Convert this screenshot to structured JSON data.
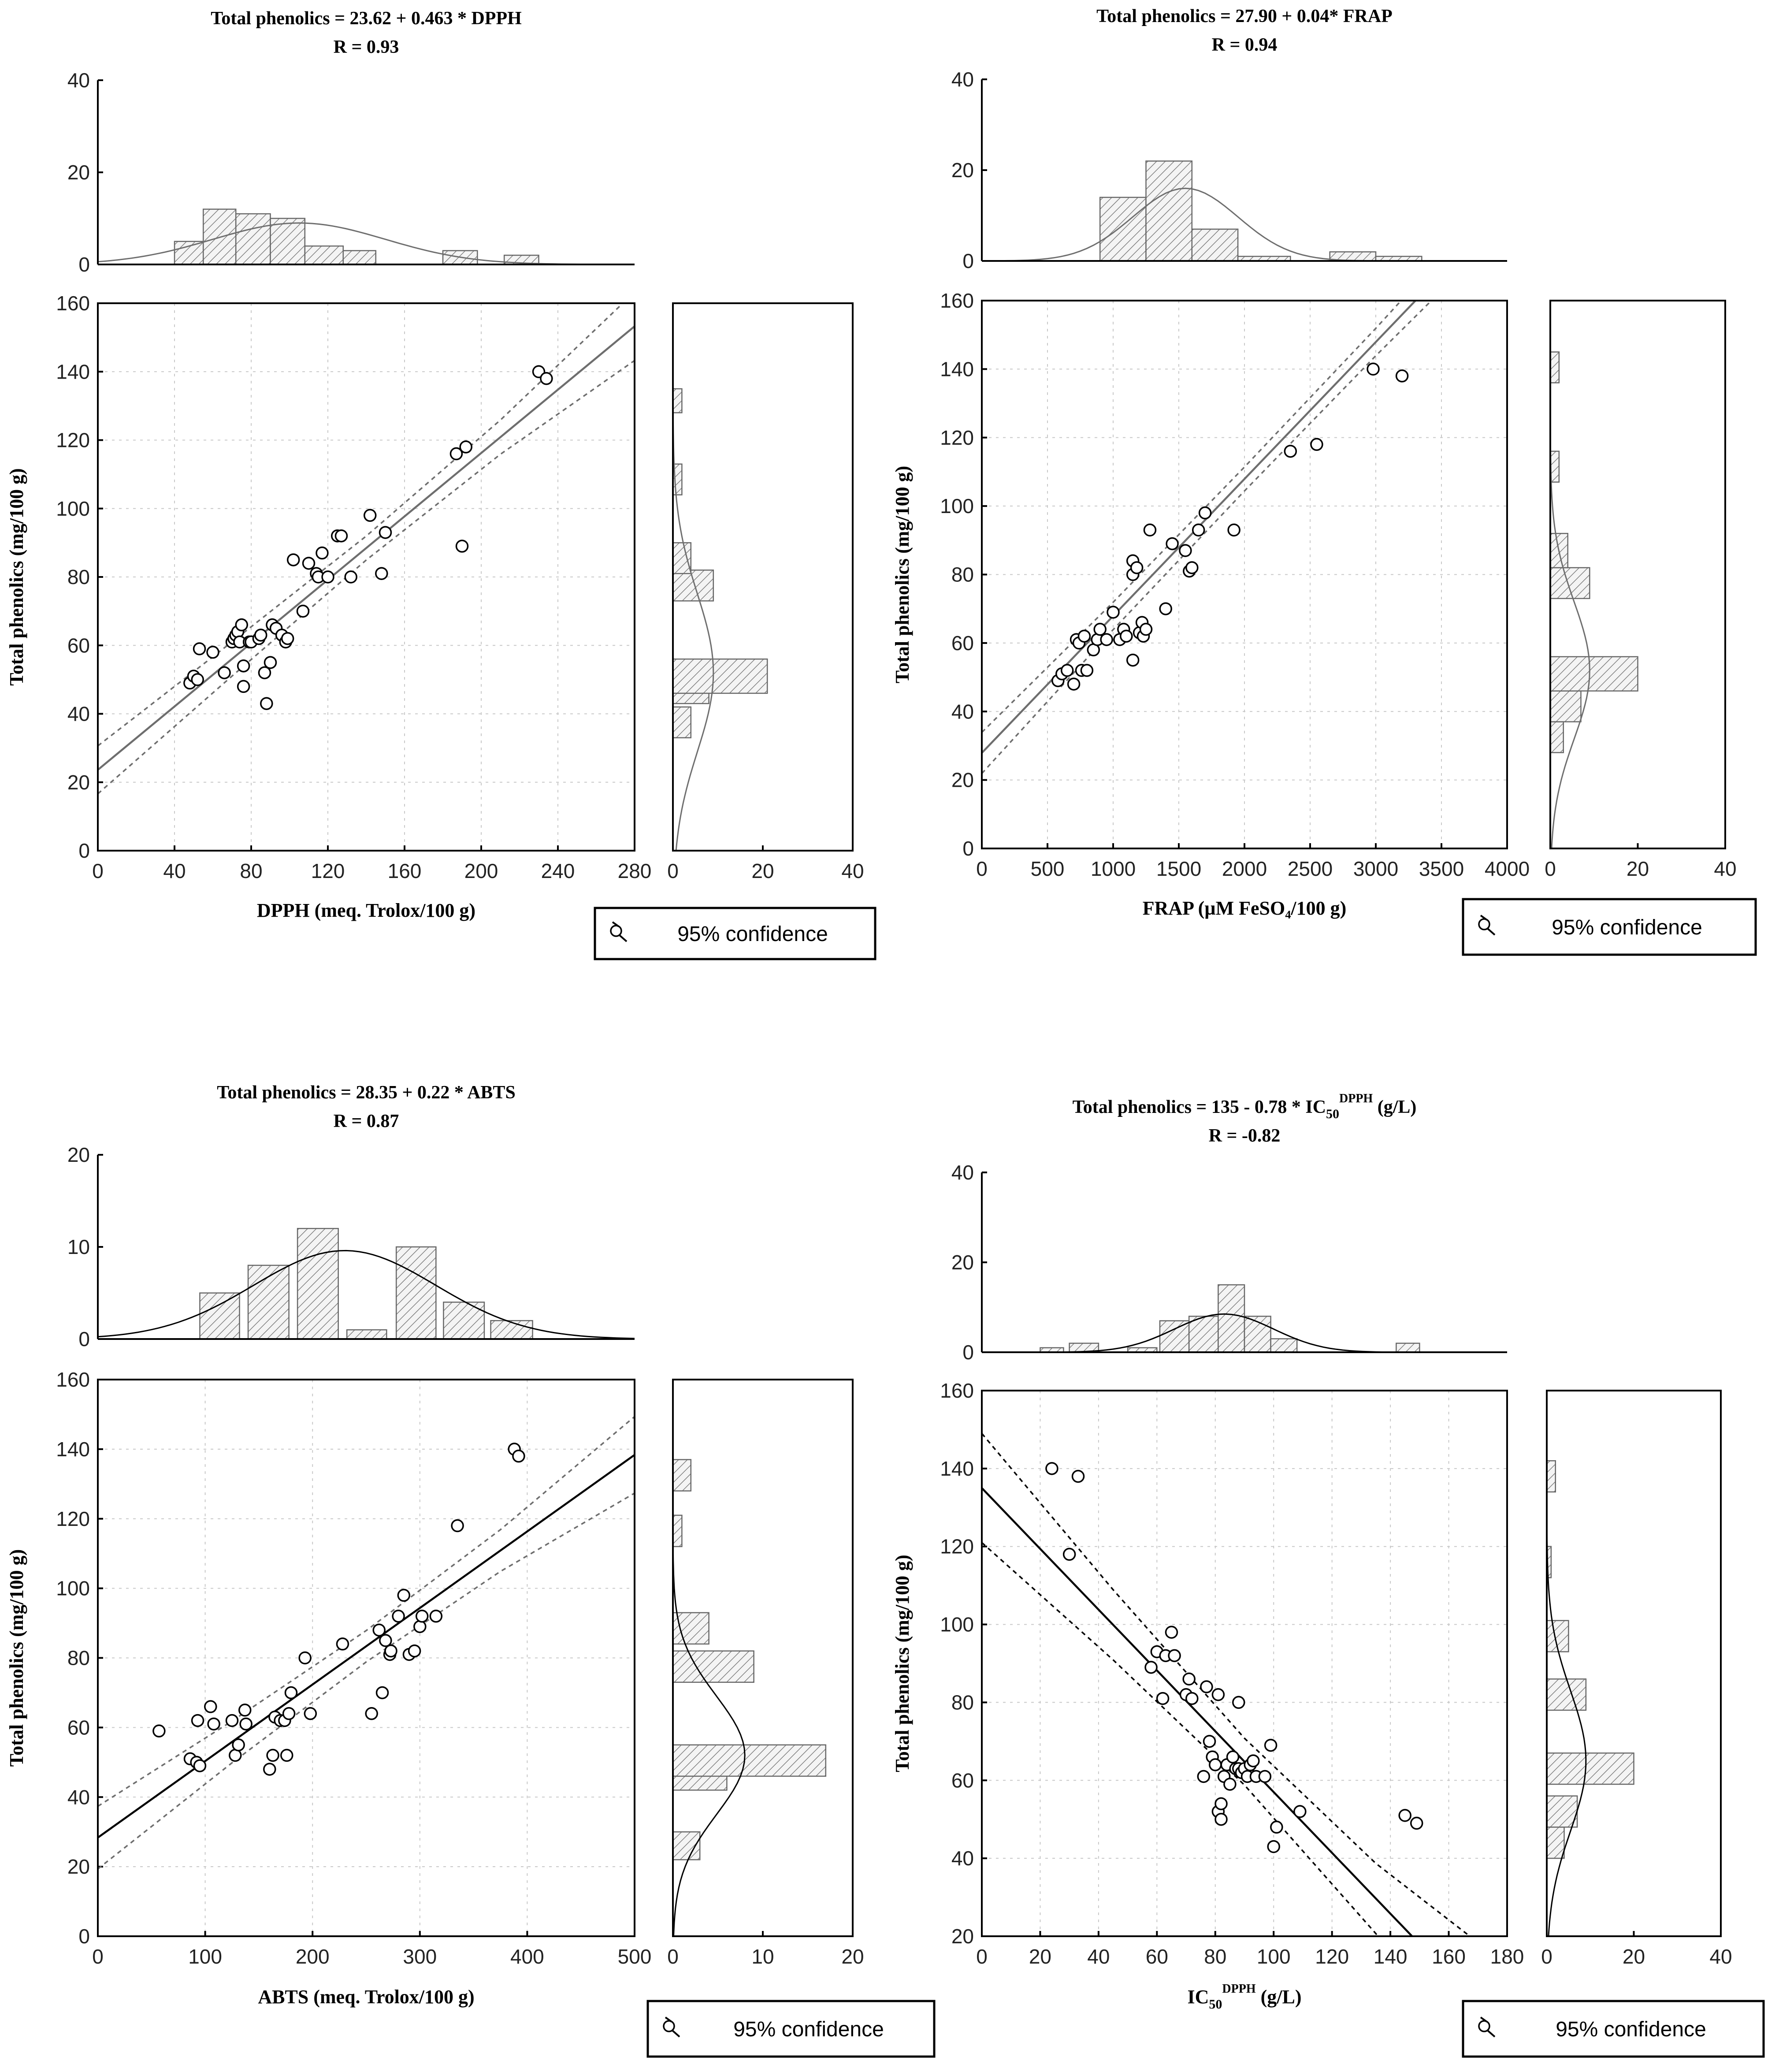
{
  "figure": {
    "legend_label": "95% confidence",
    "line_colors": {
      "gray": "#6e6e6e",
      "black": "#000000"
    }
  },
  "chart_data": [
    {
      "type": "scatter",
      "id": "dpph",
      "title": "Total phenolics = 23.62 + 0.463 * DPPH",
      "subtitle": "R = 0.93",
      "xlabel": "DPPH (meq. Trolox/100 g)",
      "ylabel": "Total phenolics (mg/100 g)",
      "xlim": [
        0,
        280
      ],
      "ylim": [
        0,
        160
      ],
      "xticks": [
        0,
        40,
        80,
        120,
        160,
        200,
        240,
        280
      ],
      "yticks": [
        0,
        20,
        40,
        60,
        80,
        100,
        120,
        140,
        160
      ],
      "line_color": "gray",
      "regression": {
        "intercept": 23.62,
        "slope": 0.463,
        "ci_band": [
          7,
          5,
          3.5,
          5,
          10
        ]
      },
      "points": [
        [
          48,
          49
        ],
        [
          50,
          51
        ],
        [
          52,
          50
        ],
        [
          53,
          59
        ],
        [
          60,
          58
        ],
        [
          66,
          52
        ],
        [
          70,
          61
        ],
        [
          71,
          62
        ],
        [
          72,
          63
        ],
        [
          73,
          64
        ],
        [
          74,
          61
        ],
        [
          75,
          66
        ],
        [
          76,
          54
        ],
        [
          76,
          48
        ],
        [
          79,
          61
        ],
        [
          80,
          61
        ],
        [
          84,
          62
        ],
        [
          85,
          63
        ],
        [
          87,
          52
        ],
        [
          88,
          43
        ],
        [
          90,
          55
        ],
        [
          91,
          66
        ],
        [
          93,
          65
        ],
        [
          96,
          63
        ],
        [
          98,
          61
        ],
        [
          99,
          62
        ],
        [
          102,
          85
        ],
        [
          107,
          70
        ],
        [
          110,
          84
        ],
        [
          114,
          81
        ],
        [
          115,
          80
        ],
        [
          117,
          87
        ],
        [
          120,
          80
        ],
        [
          125,
          92
        ],
        [
          127,
          92
        ],
        [
          132,
          80
        ],
        [
          142,
          98
        ],
        [
          148,
          81
        ],
        [
          150,
          93
        ],
        [
          187,
          116
        ],
        [
          190,
          89
        ],
        [
          192,
          118
        ],
        [
          230,
          140
        ],
        [
          234,
          138
        ]
      ],
      "top_hist": {
        "ylim": [
          0,
          40
        ],
        "yticks": [
          0,
          20,
          40
        ],
        "bins": [
          [
            40,
            55,
            5
          ],
          [
            55,
            72,
            12
          ],
          [
            72,
            90,
            11
          ],
          [
            90,
            108,
            10
          ],
          [
            108,
            128,
            4
          ],
          [
            128,
            145,
            3
          ],
          [
            180,
            198,
            3
          ],
          [
            212,
            230,
            2
          ]
        ],
        "normal": {
          "mean": 105,
          "sd": 45,
          "peak": 9
        }
      },
      "side_hist": {
        "xlim": [
          0,
          40
        ],
        "xticks": [
          0,
          20,
          40
        ],
        "bins": [
          [
            33,
            42,
            4
          ],
          [
            43,
            53,
            8
          ],
          [
            46,
            56,
            21
          ],
          [
            73,
            82,
            9
          ],
          [
            81,
            90,
            4
          ],
          [
            104,
            113,
            2
          ],
          [
            128,
            135,
            2
          ]
        ],
        "normal": {
          "mean": 52,
          "sd": 23,
          "peak": 9
        }
      }
    },
    {
      "type": "scatter",
      "id": "frap",
      "title": "Total phenolics = 27.90 + 0.04* FRAP",
      "subtitle": "R = 0.94",
      "xlabel": "FRAP (µM FeSO₄/100 g)",
      "ylabel": "Total phenolics (mg/100 g)",
      "xlim": [
        0,
        4000
      ],
      "ylim": [
        0,
        160
      ],
      "xticks": [
        0,
        500,
        1000,
        1500,
        2000,
        2500,
        3000,
        3500,
        4000
      ],
      "yticks": [
        0,
        20,
        40,
        60,
        80,
        100,
        120,
        140,
        160
      ],
      "line_color": "gray",
      "regression": {
        "intercept": 27.9,
        "slope": 0.04,
        "ci_band": [
          6,
          4,
          3.5,
          4,
          6
        ]
      },
      "points": [
        [
          580,
          49
        ],
        [
          610,
          51
        ],
        [
          650,
          52
        ],
        [
          700,
          48
        ],
        [
          720,
          61
        ],
        [
          740,
          60
        ],
        [
          760,
          52
        ],
        [
          780,
          62
        ],
        [
          800,
          52
        ],
        [
          850,
          58
        ],
        [
          880,
          61
        ],
        [
          900,
          64
        ],
        [
          950,
          61
        ],
        [
          1000,
          69
        ],
        [
          1050,
          61
        ],
        [
          1080,
          64
        ],
        [
          1100,
          62
        ],
        [
          1150,
          80
        ],
        [
          1150,
          84
        ],
        [
          1150,
          55
        ],
        [
          1180,
          82
        ],
        [
          1200,
          63
        ],
        [
          1220,
          66
        ],
        [
          1230,
          62
        ],
        [
          1250,
          64
        ],
        [
          1280,
          93
        ],
        [
          1400,
          70
        ],
        [
          1450,
          89
        ],
        [
          1550,
          87
        ],
        [
          1580,
          81
        ],
        [
          1600,
          82
        ],
        [
          1650,
          93
        ],
        [
          1700,
          98
        ],
        [
          1920,
          93
        ],
        [
          2350,
          116
        ],
        [
          2550,
          118
        ],
        [
          2980,
          140
        ],
        [
          3200,
          138
        ]
      ],
      "top_hist": {
        "ylim": [
          0,
          40
        ],
        "yticks": [
          0,
          20,
          40
        ],
        "bins": [
          [
            900,
            1250,
            14
          ],
          [
            1250,
            1600,
            22
          ],
          [
            1600,
            1950,
            7
          ],
          [
            1950,
            2350,
            1
          ],
          [
            2650,
            3000,
            2
          ],
          [
            3000,
            3350,
            1
          ]
        ],
        "normal": {
          "mean": 1550,
          "sd": 400,
          "peak": 16
        }
      },
      "side_hist": {
        "xlim": [
          0,
          40
        ],
        "xticks": [
          0,
          20,
          40
        ],
        "bins": [
          [
            28,
            37,
            3
          ],
          [
            37,
            46,
            7
          ],
          [
            46,
            56,
            20
          ],
          [
            73,
            82,
            9
          ],
          [
            82,
            92,
            4
          ],
          [
            107,
            116,
            2
          ],
          [
            136,
            145,
            2
          ]
        ],
        "normal": {
          "mean": 52,
          "sd": 20,
          "peak": 9
        }
      }
    },
    {
      "type": "scatter",
      "id": "abts",
      "title": "Total phenolics = 28.35 + 0.22 * ABTS",
      "subtitle": "R = 0.87",
      "xlabel": "ABTS (meq. Trolox/100 g)",
      "ylabel": "Total phenolics (mg/100 g)",
      "xlim": [
        0,
        500
      ],
      "ylim": [
        0,
        160
      ],
      "xticks": [
        0,
        100,
        200,
        300,
        400,
        500
      ],
      "yticks": [
        0,
        20,
        40,
        60,
        80,
        100,
        120,
        140,
        160
      ],
      "line_color": "black",
      "ci_color": "gray",
      "regression": {
        "intercept": 28.35,
        "slope": 0.22,
        "ci_band": [
          9,
          6,
          4.5,
          6,
          11
        ]
      },
      "points": [
        [
          57,
          59
        ],
        [
          86,
          51
        ],
        [
          92,
          50
        ],
        [
          95,
          49
        ],
        [
          93,
          62
        ],
        [
          105,
          66
        ],
        [
          108,
          61
        ],
        [
          125,
          62
        ],
        [
          128,
          52
        ],
        [
          131,
          55
        ],
        [
          137,
          65
        ],
        [
          138,
          61
        ],
        [
          160,
          48
        ],
        [
          163,
          52
        ],
        [
          165,
          63
        ],
        [
          170,
          62
        ],
        [
          174,
          62
        ],
        [
          176,
          52
        ],
        [
          178,
          64
        ],
        [
          180,
          70
        ],
        [
          193,
          80
        ],
        [
          198,
          64
        ],
        [
          228,
          84
        ],
        [
          255,
          64
        ],
        [
          262,
          88
        ],
        [
          265,
          70
        ],
        [
          268,
          85
        ],
        [
          272,
          81
        ],
        [
          273,
          82
        ],
        [
          280,
          92
        ],
        [
          285,
          98
        ],
        [
          290,
          81
        ],
        [
          295,
          82
        ],
        [
          300,
          89
        ],
        [
          302,
          92
        ],
        [
          315,
          92
        ],
        [
          335,
          118
        ],
        [
          388,
          140
        ],
        [
          392,
          138
        ]
      ],
      "top_hist": {
        "ylim": [
          0,
          20
        ],
        "yticks": [
          0,
          10,
          20
        ],
        "bins": [
          [
            95,
            132,
            5
          ],
          [
            140,
            178,
            8
          ],
          [
            186,
            224,
            12
          ],
          [
            232,
            269,
            1
          ],
          [
            278,
            315,
            10
          ],
          [
            322,
            360,
            4
          ],
          [
            366,
            405,
            2
          ]
        ],
        "normal": {
          "mean": 230,
          "sd": 85,
          "peak": 9.6
        }
      },
      "side_hist": {
        "xlim": [
          0,
          20
        ],
        "xticks": [
          0,
          10,
          20
        ],
        "bins": [
          [
            22,
            30,
            3
          ],
          [
            42,
            51,
            6
          ],
          [
            46,
            55,
            17
          ],
          [
            73,
            82,
            9
          ],
          [
            84,
            93,
            4
          ],
          [
            112,
            121,
            1
          ],
          [
            128,
            137,
            2
          ]
        ],
        "normal": {
          "mean": 52,
          "sd": 17,
          "peak": 8
        }
      }
    },
    {
      "type": "scatter",
      "id": "ic50",
      "title": "Total phenolics = 135 - 0.78 * IC",
      "title_sub": "50",
      "title_sup": "DPPH",
      "title_tail": " (g/L)",
      "subtitle": "R = -0.82",
      "xlabel": "IC",
      "xlabel_sub": "50",
      "xlabel_sup": "DPPH",
      "xlabel_tail": " (g/L)",
      "ylabel": "Total phenolics (mg/100 g)",
      "xlim": [
        0,
        180
      ],
      "ylim": [
        20,
        160
      ],
      "xticks": [
        0,
        20,
        40,
        60,
        80,
        100,
        120,
        140,
        160,
        180
      ],
      "yticks": [
        20,
        40,
        60,
        80,
        100,
        120,
        140,
        160
      ],
      "line_color": "black",
      "ci_color": "black",
      "regression": {
        "intercept": 135,
        "slope": -0.78,
        "ci_band": [
          14,
          9,
          6,
          9,
          18
        ]
      },
      "points": [
        [
          24,
          140
        ],
        [
          30,
          118
        ],
        [
          33,
          138
        ],
        [
          58,
          89
        ],
        [
          60,
          93
        ],
        [
          62,
          81
        ],
        [
          63,
          92
        ],
        [
          65,
          98
        ],
        [
          66,
          92
        ],
        [
          70,
          82
        ],
        [
          71,
          86
        ],
        [
          72,
          81
        ],
        [
          76,
          61
        ],
        [
          77,
          84
        ],
        [
          78,
          70
        ],
        [
          79,
          66
        ],
        [
          80,
          64
        ],
        [
          81,
          82
        ],
        [
          81,
          52
        ],
        [
          82,
          54
        ],
        [
          82,
          50
        ],
        [
          83,
          61
        ],
        [
          84,
          64
        ],
        [
          85,
          59
        ],
        [
          86,
          66
        ],
        [
          87,
          63
        ],
        [
          88,
          63
        ],
        [
          88,
          80
        ],
        [
          89,
          62
        ],
        [
          90,
          63
        ],
        [
          91,
          61
        ],
        [
          92,
          64
        ],
        [
          93,
          65
        ],
        [
          94,
          61
        ],
        [
          97,
          61
        ],
        [
          99,
          69
        ],
        [
          100,
          43
        ],
        [
          101,
          48
        ],
        [
          109,
          52
        ],
        [
          145,
          51
        ],
        [
          149,
          49
        ]
      ],
      "top_hist": {
        "ylim": [
          0,
          40
        ],
        "yticks": [
          0,
          20,
          40
        ],
        "bins": [
          [
            20,
            28,
            1
          ],
          [
            30,
            40,
            2
          ],
          [
            50,
            60,
            1
          ],
          [
            61,
            71,
            7
          ],
          [
            71,
            81,
            8
          ],
          [
            81,
            90,
            15
          ],
          [
            90,
            99,
            8
          ],
          [
            99,
            108,
            3
          ],
          [
            142,
            150,
            2
          ]
        ],
        "normal": {
          "mean": 83,
          "sd": 17,
          "peak": 8.5
        }
      },
      "side_hist": {
        "xlim": [
          0,
          40
        ],
        "xticks": [
          0,
          20,
          40
        ],
        "bins": [
          [
            40,
            48,
            4
          ],
          [
            48,
            56,
            7
          ],
          [
            59,
            67,
            20
          ],
          [
            78,
            86,
            9
          ],
          [
            93,
            101,
            5
          ],
          [
            112,
            120,
            1
          ],
          [
            134,
            142,
            2
          ]
        ],
        "normal": {
          "mean": 65,
          "sd": 18,
          "peak": 9
        }
      }
    }
  ]
}
